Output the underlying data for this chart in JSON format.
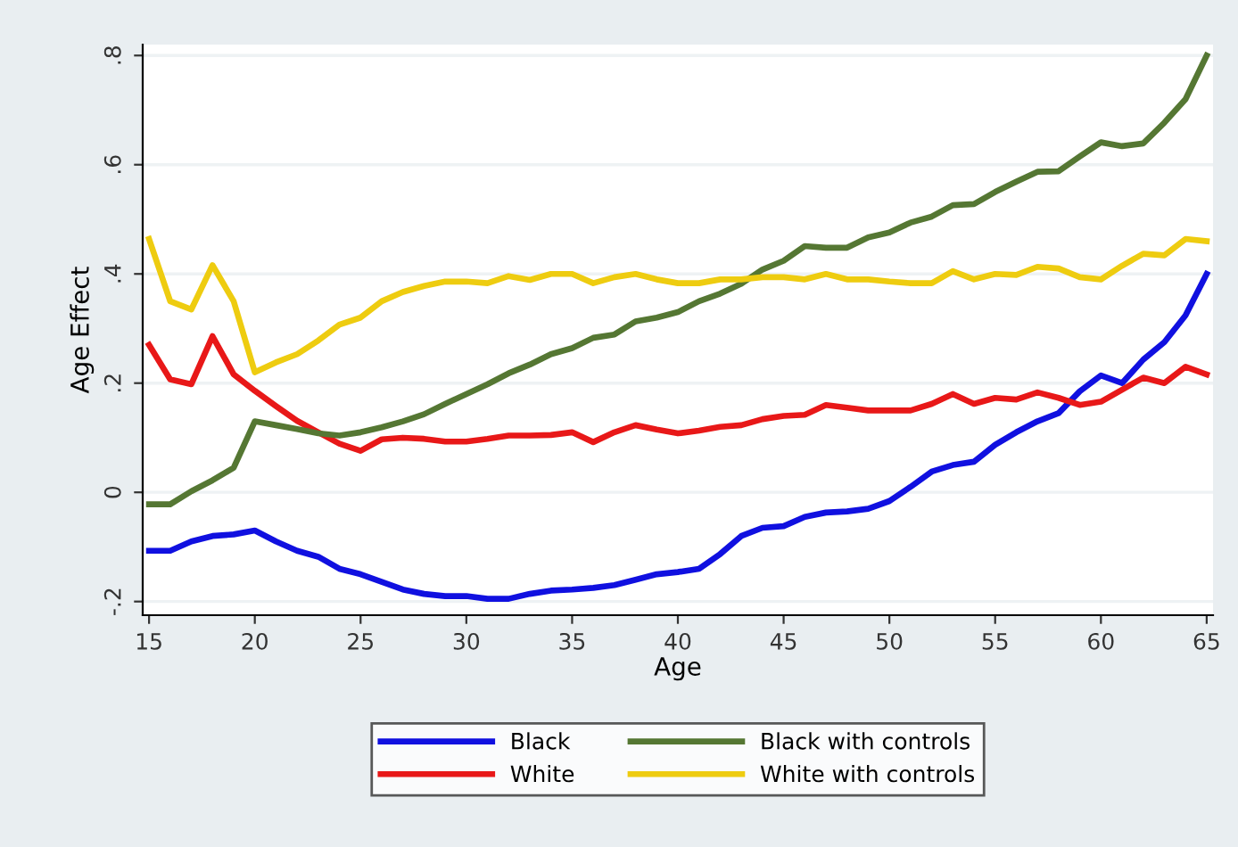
{
  "chart_data": {
    "type": "line",
    "xlabel": "Age",
    "ylabel": "Age Effect",
    "x": [
      15,
      16,
      17,
      18,
      19,
      20,
      21,
      22,
      23,
      24,
      25,
      26,
      27,
      28,
      29,
      30,
      31,
      32,
      33,
      34,
      35,
      36,
      37,
      38,
      39,
      40,
      41,
      42,
      43,
      44,
      45,
      46,
      47,
      48,
      49,
      50,
      51,
      52,
      53,
      54,
      55,
      56,
      57,
      58,
      59,
      60,
      61,
      62,
      63,
      64,
      65
    ],
    "series": [
      {
        "name": "Black",
        "color": "#1010e0",
        "values": [
          -0.107,
          -0.107,
          -0.09,
          -0.08,
          -0.077,
          -0.07,
          -0.09,
          -0.107,
          -0.118,
          -0.14,
          -0.15,
          -0.164,
          -0.178,
          -0.186,
          -0.19,
          -0.19,
          -0.195,
          -0.195,
          -0.186,
          -0.18,
          -0.178,
          -0.175,
          -0.17,
          -0.16,
          -0.15,
          -0.146,
          -0.14,
          -0.113,
          -0.08,
          -0.065,
          -0.062,
          -0.045,
          -0.037,
          -0.035,
          -0.03,
          -0.016,
          0.01,
          0.038,
          0.05,
          0.056,
          0.087,
          0.11,
          0.13,
          0.145,
          0.185,
          0.214,
          0.2,
          0.243,
          0.275,
          0.324,
          0.4
        ]
      },
      {
        "name": "White",
        "color": "#e81818",
        "values": [
          0.27,
          0.207,
          0.198,
          0.286,
          0.216,
          0.186,
          0.158,
          0.131,
          0.11,
          0.089,
          0.076,
          0.097,
          0.1,
          0.098,
          0.093,
          0.093,
          0.098,
          0.104,
          0.104,
          0.105,
          0.11,
          0.092,
          0.11,
          0.123,
          0.115,
          0.108,
          0.113,
          0.12,
          0.123,
          0.134,
          0.14,
          0.142,
          0.16,
          0.155,
          0.15,
          0.15,
          0.15,
          0.162,
          0.18,
          0.162,
          0.173,
          0.17,
          0.183,
          0.173,
          0.16,
          0.166,
          0.188,
          0.21,
          0.2,
          0.23,
          0.216
        ]
      },
      {
        "name": "Black with controls",
        "color": "#557733",
        "values": [
          -0.022,
          -0.022,
          0.002,
          0.022,
          0.045,
          0.13,
          0.123,
          0.116,
          0.108,
          0.104,
          0.11,
          0.119,
          0.13,
          0.143,
          0.162,
          0.18,
          0.198,
          0.218,
          0.234,
          0.253,
          0.264,
          0.283,
          0.289,
          0.313,
          0.32,
          0.33,
          0.35,
          0.364,
          0.382,
          0.408,
          0.424,
          0.451,
          0.448,
          0.448,
          0.467,
          0.476,
          0.494,
          0.505,
          0.526,
          0.528,
          0.55,
          0.569,
          0.587,
          0.588,
          0.615,
          0.641,
          0.634,
          0.639,
          0.677,
          0.72,
          0.8
        ]
      },
      {
        "name": "White with controls",
        "color": "#eecc10",
        "values": [
          0.464,
          0.35,
          0.335,
          0.416,
          0.35,
          0.22,
          0.238,
          0.253,
          0.278,
          0.307,
          0.32,
          0.35,
          0.367,
          0.378,
          0.386,
          0.386,
          0.383,
          0.396,
          0.389,
          0.4,
          0.4,
          0.383,
          0.394,
          0.4,
          0.39,
          0.383,
          0.383,
          0.39,
          0.39,
          0.394,
          0.394,
          0.39,
          0.4,
          0.39,
          0.39,
          0.386,
          0.383,
          0.383,
          0.405,
          0.39,
          0.4,
          0.398,
          0.413,
          0.41,
          0.394,
          0.39,
          0.415,
          0.437,
          0.434,
          0.464,
          0.46
        ]
      }
    ],
    "xlim": [
      14.7,
      65.3
    ],
    "xticks": [
      15,
      20,
      25,
      30,
      35,
      40,
      45,
      50,
      55,
      60,
      65
    ],
    "ylim": [
      -0.225,
      0.82
    ],
    "yticks": [
      {
        "value": -0.2,
        "label": "-.2"
      },
      0,
      {
        "value": 0.2,
        "label": ".2"
      },
      {
        "value": 0.4,
        "label": ".4"
      },
      {
        "value": 0.6,
        "label": ".6"
      },
      {
        "value": 0.8,
        "label": ".8"
      }
    ],
    "grid": "y",
    "legend": "bottom",
    "marker": "none",
    "line_style": "solid"
  }
}
